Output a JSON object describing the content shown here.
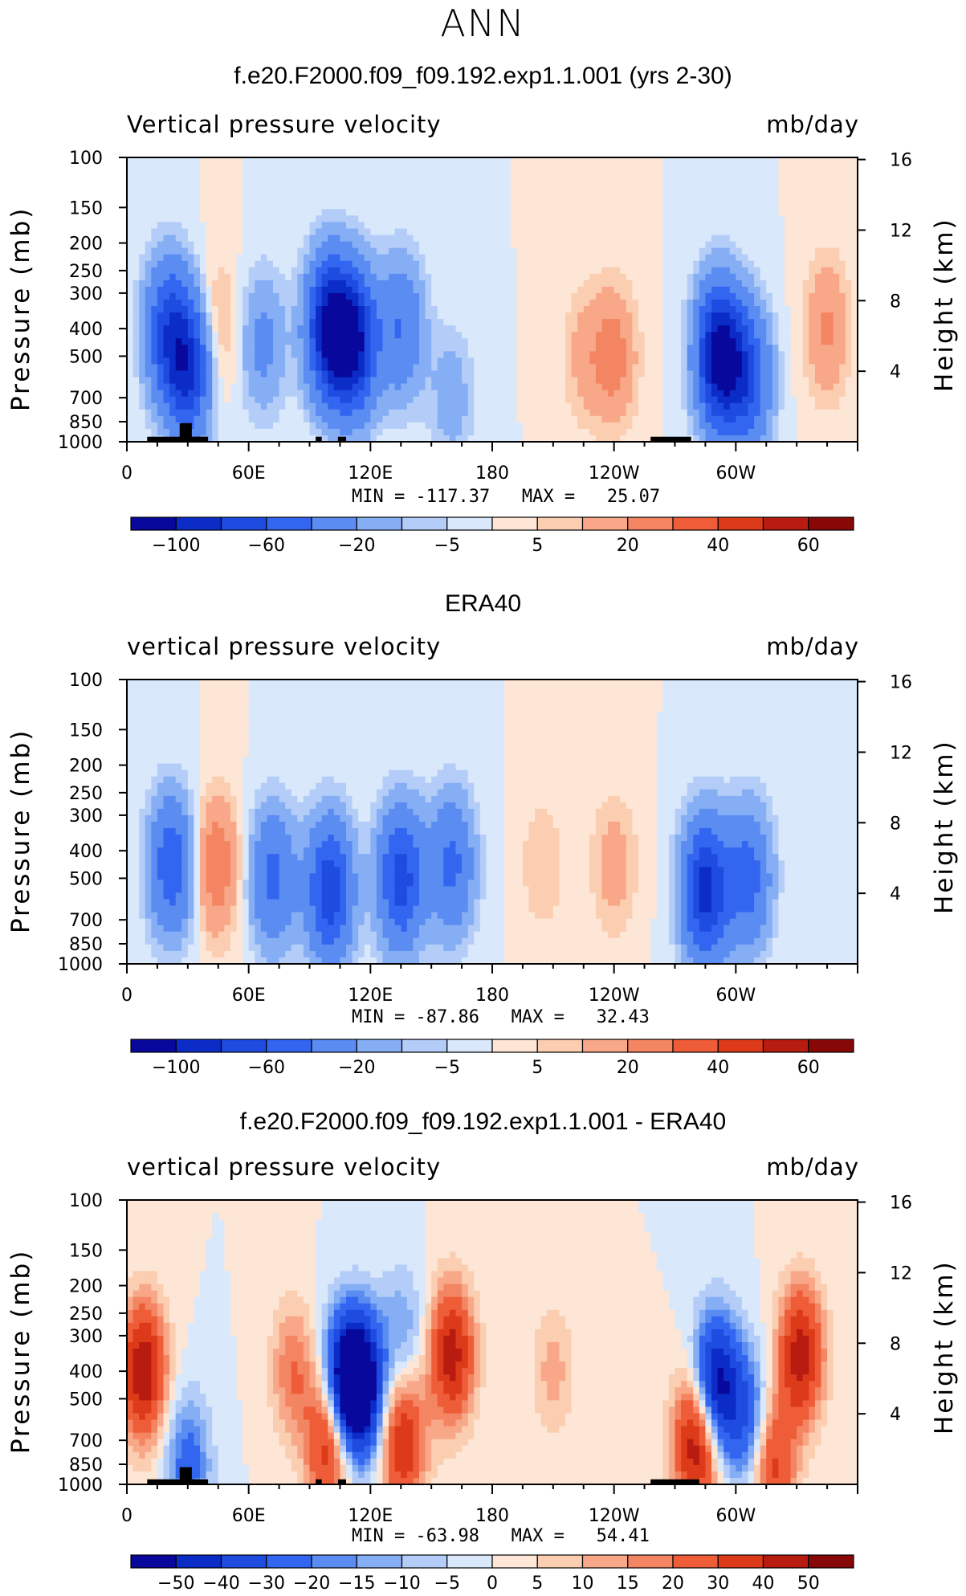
{
  "suptitle": "ANN",
  "panels": [
    {
      "title": "f.e20.F2000.f09_f09.192.exp1.1.001 (yrs 2-30)",
      "left_string": "Vertical pressure velocity",
      "right_string": "mb/day",
      "stats": "MIN = -117.37   MAX =   25.07",
      "colorbar_labels": [
        "-100",
        "-60",
        "-20",
        "-5",
        "5",
        "20",
        "40",
        "60"
      ]
    },
    {
      "title": "ERA40",
      "left_string": "vertical pressure velocity",
      "right_string": "mb/day",
      "stats": "MIN = -87.86   MAX =   32.43",
      "colorbar_labels": [
        "-100",
        "-60",
        "-20",
        "-5",
        "5",
        "20",
        "40",
        "60"
      ]
    },
    {
      "title": "f.e20.F2000.f09_f09.192.exp1.1.001 - ERA40",
      "left_string": "vertical pressure velocity",
      "right_string": "mb/day",
      "stats": "MIN = -63.98   MAX =   54.41",
      "colorbar_labels": [
        "-50",
        "-40",
        "-30",
        "-20",
        "-15",
        "-10",
        "-5",
        "0",
        "5",
        "10",
        "15",
        "20",
        "30",
        "40",
        "50"
      ]
    }
  ],
  "colors": {
    "scale": [
      "#08089c",
      "#0c2cc8",
      "#1e4be0",
      "#3366f0",
      "#5a8cf2",
      "#86aef5",
      "#b3cdf8",
      "#d9e8fb",
      "#fde6d6",
      "#fbcdb1",
      "#f8a888",
      "#f48563",
      "#ee5c38",
      "#dd3a1a",
      "#b81b10",
      "#880808"
    ],
    "land": "#000000"
  },
  "chart_data": [
    {
      "type": "heatmap",
      "xlabel": "",
      "ylabel": "Pressure (mb)",
      "ylabel_right": "Height (km)",
      "x_ticks": [
        "0",
        "60E",
        "120E",
        "180",
        "120W",
        "60W"
      ],
      "x_tick_values": [
        0,
        60,
        120,
        180,
        240,
        300
      ],
      "xlim": [
        0,
        360
      ],
      "y_ticks": [
        100,
        150,
        200,
        250,
        300,
        400,
        500,
        700,
        850,
        1000
      ],
      "ylim": [
        1000,
        100
      ],
      "y_scale": "log",
      "y2_ticks": [
        16,
        12,
        8,
        4
      ],
      "contour_levels": [
        -120,
        -100,
        -80,
        -60,
        -40,
        -20,
        -10,
        -5,
        0,
        5,
        10,
        20,
        30,
        40,
        50,
        60,
        70
      ],
      "features": [
        {
          "lon": 20,
          "p": 400,
          "value": -60
        },
        {
          "lon": 30,
          "p": 550,
          "value": -80
        },
        {
          "lon": 44,
          "p": 400,
          "value": 15
        },
        {
          "lon": 67,
          "p": 450,
          "value": -25
        },
        {
          "lon": 100,
          "p": 400,
          "value": -105
        },
        {
          "lon": 112,
          "p": 450,
          "value": -95
        },
        {
          "lon": 135,
          "p": 400,
          "value": -40
        },
        {
          "lon": 160,
          "p": 700,
          "value": -15
        },
        {
          "lon": 240,
          "p": 500,
          "value": 25
        },
        {
          "lon": 225,
          "p": 500,
          "value": 12
        },
        {
          "lon": 292,
          "p": 500,
          "value": -117
        },
        {
          "lon": 306,
          "p": 600,
          "value": -60
        },
        {
          "lon": 345,
          "p": 400,
          "value": 22
        }
      ]
    },
    {
      "type": "heatmap",
      "xlabel": "",
      "ylabel": "Pressure (mb)",
      "ylabel_right": "Height (km)",
      "x_ticks": [
        "0",
        "60E",
        "120E",
        "180",
        "120W",
        "60W"
      ],
      "x_tick_values": [
        0,
        60,
        120,
        180,
        240,
        300
      ],
      "xlim": [
        0,
        360
      ],
      "y_ticks": [
        100,
        150,
        200,
        250,
        300,
        400,
        500,
        700,
        850,
        1000
      ],
      "ylim": [
        1000,
        100
      ],
      "y_scale": "log",
      "y2_ticks": [
        16,
        12,
        8,
        4
      ],
      "contour_levels": [
        -120,
        -100,
        -80,
        -60,
        -40,
        -20,
        -10,
        -5,
        0,
        5,
        10,
        20,
        30,
        40,
        50,
        60,
        70
      ],
      "features": [
        {
          "lon": 22,
          "p": 450,
          "value": -55
        },
        {
          "lon": 44,
          "p": 450,
          "value": 30
        },
        {
          "lon": 72,
          "p": 500,
          "value": -45
        },
        {
          "lon": 100,
          "p": 550,
          "value": -75
        },
        {
          "lon": 135,
          "p": 500,
          "value": -70
        },
        {
          "lon": 160,
          "p": 450,
          "value": -45
        },
        {
          "lon": 205,
          "p": 450,
          "value": 10
        },
        {
          "lon": 240,
          "p": 450,
          "value": 15
        },
        {
          "lon": 285,
          "p": 550,
          "value": -88
        },
        {
          "lon": 306,
          "p": 500,
          "value": -50
        },
        {
          "lon": 345,
          "p": 500,
          "value": -5
        }
      ]
    },
    {
      "type": "heatmap",
      "xlabel": "",
      "ylabel": "Pressure (mb)",
      "ylabel_right": "Height (km)",
      "x_ticks": [
        "0",
        "60E",
        "120E",
        "180",
        "120W",
        "60W"
      ],
      "x_tick_values": [
        0,
        60,
        120,
        180,
        240,
        300
      ],
      "xlim": [
        0,
        360
      ],
      "y_ticks": [
        100,
        150,
        200,
        250,
        300,
        400,
        500,
        700,
        850,
        1000
      ],
      "ylim": [
        1000,
        100
      ],
      "y_scale": "log",
      "y2_ticks": [
        16,
        12,
        8,
        4
      ],
      "contour_levels": [
        -60,
        -50,
        -40,
        -30,
        -20,
        -15,
        -10,
        -5,
        0,
        5,
        10,
        15,
        20,
        30,
        40,
        50,
        60
      ],
      "features": [
        {
          "lon": 8,
          "p": 400,
          "value": 50
        },
        {
          "lon": 30,
          "p": 850,
          "value": -25
        },
        {
          "lon": 82,
          "p": 400,
          "value": 20
        },
        {
          "lon": 100,
          "p": 700,
          "value": 45
        },
        {
          "lon": 108,
          "p": 450,
          "value": -63
        },
        {
          "lon": 116,
          "p": 450,
          "value": -55
        },
        {
          "lon": 136,
          "p": 700,
          "value": 40
        },
        {
          "lon": 136,
          "p": 300,
          "value": -15
        },
        {
          "lon": 160,
          "p": 350,
          "value": 45
        },
        {
          "lon": 210,
          "p": 400,
          "value": 12
        },
        {
          "lon": 281,
          "p": 700,
          "value": 54
        },
        {
          "lon": 290,
          "p": 450,
          "value": -60
        },
        {
          "lon": 306,
          "p": 600,
          "value": -30
        },
        {
          "lon": 332,
          "p": 350,
          "value": 45
        },
        {
          "lon": 318,
          "p": 850,
          "value": 35
        }
      ]
    }
  ]
}
